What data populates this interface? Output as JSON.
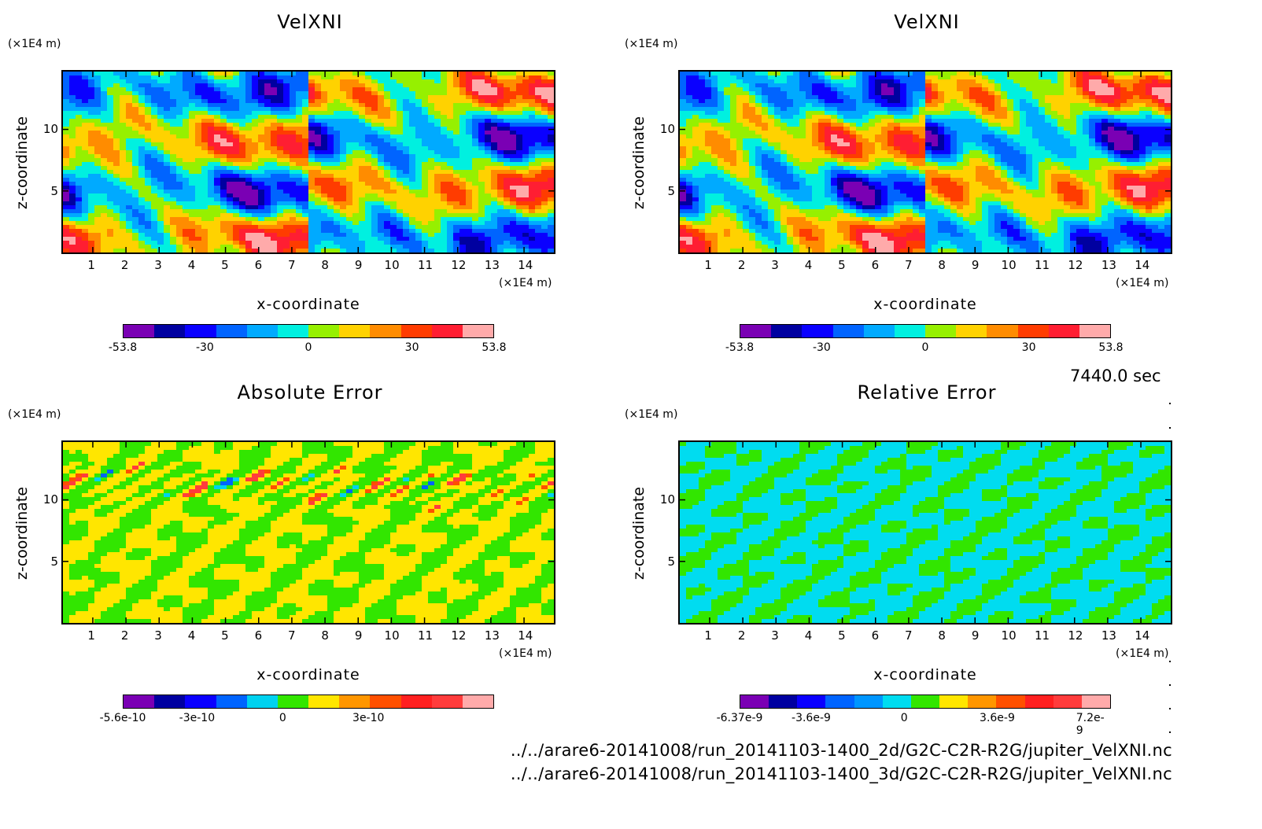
{
  "chart_data": [
    {
      "type": "heatmap",
      "title": "VelXNI",
      "xlabel": "x-coordinate",
      "ylabel": "z-coordinate",
      "x_unit": "(×1E4 m)",
      "y_unit": "(×1E4 m)",
      "x_ticks": [
        "1",
        "2",
        "3",
        "4",
        "5",
        "6",
        "7",
        "8",
        "9",
        "10",
        "11",
        "12",
        "13",
        "14"
      ],
      "y_ticks": [
        "5",
        "10"
      ],
      "xlim": [
        0.1,
        14.9
      ],
      "ylim": [
        0,
        14.7
      ],
      "colorbar": {
        "levels": [
          "#7a00b4",
          "#0000a0",
          "#0a00ff",
          "#0064ff",
          "#00aaff",
          "#00f0e0",
          "#96f000",
          "#ffd200",
          "#ff8c00",
          "#ff3c00",
          "#ff1e32",
          "#ffaaaa"
        ],
        "labels": [
          {
            "text": "-53.8",
            "value": -53.8
          },
          {
            "text": "-30",
            "value": -30
          },
          {
            "text": "0",
            "value": 0
          },
          {
            "text": "30",
            "value": 30
          },
          {
            "text": "53.8",
            "value": 53.8
          }
        ],
        "range": [
          -53.8,
          53.8
        ]
      }
    },
    {
      "type": "heatmap",
      "title": "VelXNI",
      "xlabel": "x-coordinate",
      "ylabel": "z-coordinate",
      "x_unit": "(×1E4 m)",
      "y_unit": "(×1E4 m)",
      "x_ticks": [
        "1",
        "2",
        "3",
        "4",
        "5",
        "6",
        "7",
        "8",
        "9",
        "10",
        "11",
        "12",
        "13",
        "14"
      ],
      "y_ticks": [
        "5",
        "10"
      ],
      "xlim": [
        0.1,
        14.9
      ],
      "ylim": [
        0,
        14.7
      ],
      "colorbar": {
        "levels": [
          "#7a00b4",
          "#0000a0",
          "#0a00ff",
          "#0064ff",
          "#00aaff",
          "#00f0e0",
          "#96f000",
          "#ffd200",
          "#ff8c00",
          "#ff3c00",
          "#ff1e32",
          "#ffaaaa"
        ],
        "labels": [
          {
            "text": "-53.8",
            "value": -53.8
          },
          {
            "text": "-30",
            "value": -30
          },
          {
            "text": "0",
            "value": 0
          },
          {
            "text": "30",
            "value": 30
          },
          {
            "text": "53.8",
            "value": 53.8
          }
        ],
        "range": [
          -53.8,
          53.8
        ]
      }
    },
    {
      "type": "heatmap",
      "title": "Absolute Error",
      "xlabel": "x-coordinate",
      "ylabel": "z-coordinate",
      "x_unit": "(×1E4 m)",
      "y_unit": "(×1E4 m)",
      "x_ticks": [
        "1",
        "2",
        "3",
        "4",
        "5",
        "6",
        "7",
        "8",
        "9",
        "10",
        "11",
        "12",
        "13",
        "14"
      ],
      "y_ticks": [
        "5",
        "10"
      ],
      "xlim": [
        0.1,
        14.9
      ],
      "ylim": [
        0,
        14.7
      ],
      "colorbar": {
        "levels": [
          "#7a00b4",
          "#0000a0",
          "#0a00ff",
          "#0064ff",
          "#00d2f0",
          "#32e600",
          "#ffe600",
          "#ff9600",
          "#ff5000",
          "#ff2020",
          "#ff3c3c",
          "#ffaaaa"
        ],
        "labels": [
          {
            "text": "-5.6e-10",
            "value": -5.6e-10
          },
          {
            "text": "-3e-10",
            "value": -3e-10
          },
          {
            "text": "0",
            "value": 0
          },
          {
            "text": "3e-10",
            "value": 3e-10
          }
        ],
        "range": [
          -5.6e-10,
          7.4e-10
        ]
      }
    },
    {
      "type": "heatmap",
      "title": "Relative Error",
      "xlabel": "x-coordinate",
      "ylabel": "z-coordinate",
      "x_unit": "(×1E4 m)",
      "y_unit": "(×1E4 m)",
      "x_ticks": [
        "1",
        "2",
        "3",
        "4",
        "5",
        "6",
        "7",
        "8",
        "9",
        "10",
        "11",
        "12",
        "13",
        "14"
      ],
      "y_ticks": [
        "5",
        "10"
      ],
      "xlim": [
        0.1,
        14.9
      ],
      "ylim": [
        0,
        14.7
      ],
      "colorbar": {
        "levels": [
          "#7a00b4",
          "#0000a0",
          "#0a00ff",
          "#0064ff",
          "#0096ff",
          "#00dcf0",
          "#32e600",
          "#ffe600",
          "#ff9600",
          "#ff5000",
          "#ff2020",
          "#ff3c3c",
          "#ffaaaa"
        ],
        "labels": [
          {
            "text": "-6.37e-9",
            "value": -6.37e-09
          },
          {
            "text": "-3.6e-9",
            "value": -3.6e-09
          },
          {
            "text": "0",
            "value": 0
          },
          {
            "text": "3.6e-9",
            "value": 3.6e-09
          },
          {
            "text": "7.2e-9",
            "value": 7.2e-09
          }
        ],
        "range": [
          -6.37e-09,
          8e-09
        ]
      }
    }
  ],
  "annotations": {
    "time": "7440.0 sec",
    "path_2d": "../../arare6-20141008/run_20141103-1400_2d/G2C-C2R-R2G/jupiter_VelXNI.nc",
    "path_3d": "../../arare6-20141008/run_20141103-1400_3d/G2C-C2R-R2G/jupiter_VelXNI.nc"
  }
}
